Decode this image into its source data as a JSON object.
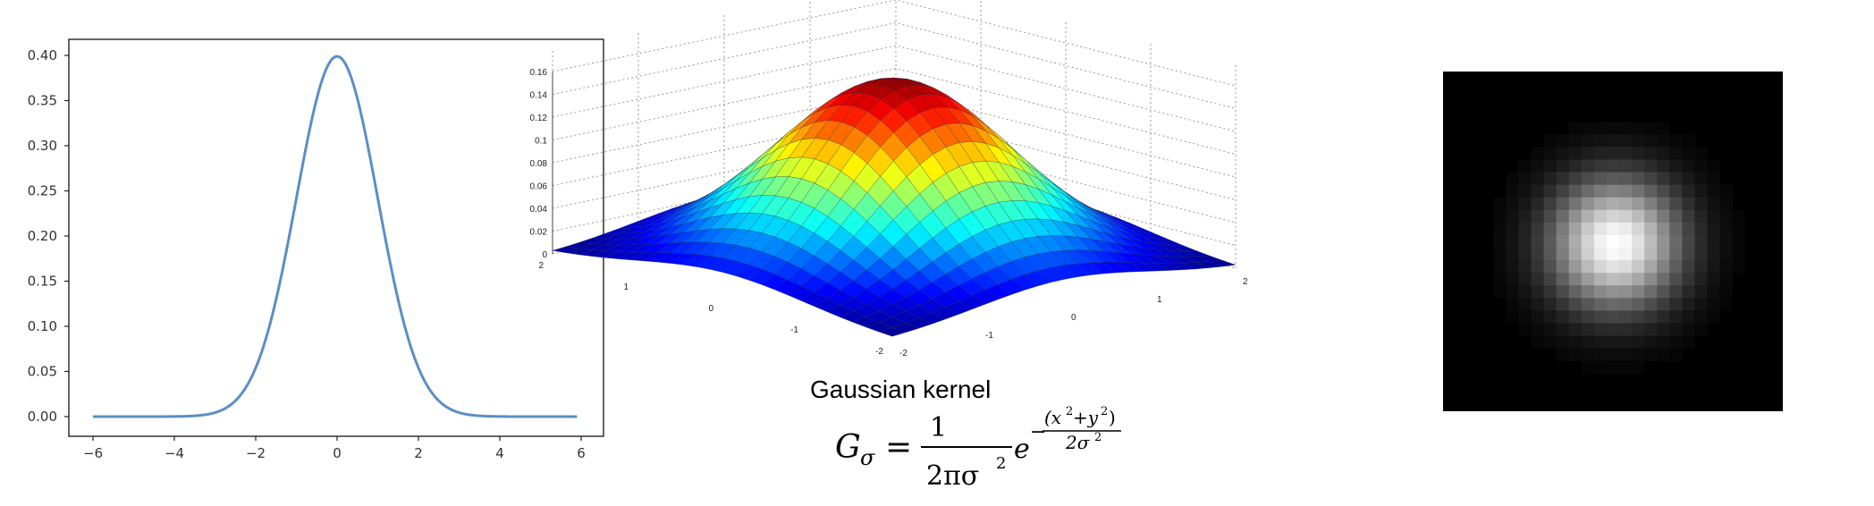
{
  "charts": {
    "line": {
      "xticks": [
        "−6",
        "−4",
        "−2",
        "0",
        "2",
        "4",
        "6"
      ],
      "yticks": [
        "0.00",
        "0.05",
        "0.10",
        "0.15",
        "0.20",
        "0.25",
        "0.30",
        "0.35",
        "0.40"
      ]
    },
    "surface": {
      "zticks": [
        "0",
        "0.02",
        "0.04",
        "0.06",
        "0.08",
        "0.1",
        "0.12",
        "0.14",
        "0.16"
      ],
      "xticks": [
        "2",
        "1",
        "0",
        "-1",
        "-2"
      ],
      "yticks": [
        "-2",
        "-1",
        "0",
        "1",
        "2"
      ]
    }
  },
  "caption": {
    "title": "Gaussian kernel",
    "G": "G",
    "sigma": "σ",
    "equals": "=",
    "numerator": "1",
    "denominator": "2πσ",
    "sq": "2",
    "e": "e",
    "exp_minus": "−",
    "exp_num": "(x",
    "exp_plus": "+y",
    "exp_close": ")",
    "exp_den": "2σ"
  },
  "colors": {
    "line": "#5b8ec4",
    "surface_colormap": "jet",
    "image_background": "#000000"
  },
  "chart_data": [
    {
      "type": "line",
      "title": "",
      "xlabel": "",
      "ylabel": "",
      "xlim": [
        -6,
        6
      ],
      "ylim": [
        0,
        0.4
      ],
      "series": [
        {
          "x": [
            -6,
            -5,
            -4,
            -3,
            -2.5,
            -2,
            -1.5,
            -1,
            -0.5,
            0,
            0.5,
            1,
            1.5,
            2,
            2.5,
            3,
            4,
            5,
            6
          ],
          "y": [
            0.0,
            0.0,
            0.0001,
            0.0044,
            0.0175,
            0.054,
            0.1295,
            0.242,
            0.352,
            0.399,
            0.352,
            0.242,
            0.1295,
            0.054,
            0.0175,
            0.0044,
            0.0001,
            0.0,
            0.0
          ]
        }
      ]
    },
    {
      "type": "surface",
      "title": "",
      "xlim": [
        -2,
        2
      ],
      "ylim": [
        -2,
        2
      ],
      "zlim": [
        0,
        0.16
      ],
      "peak": 0.159,
      "function": "1/(2*pi*sigma^2) * exp(-(x^2+y^2)/(2*sigma^2)), sigma=1"
    },
    {
      "type": "heatmap",
      "title": "",
      "description_value": "gaussian kernel intensity image",
      "grid_size": 27,
      "peak_intensity": 1.0
    }
  ]
}
